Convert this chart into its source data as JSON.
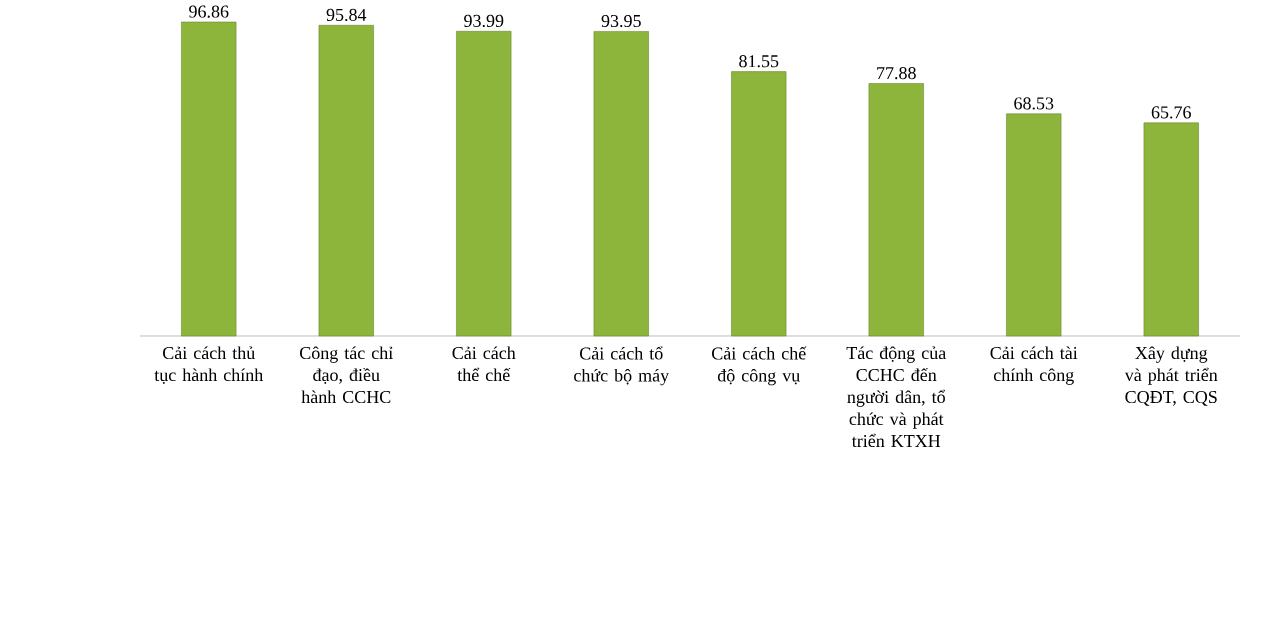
{
  "chart_data": {
    "type": "bar",
    "categories": [
      "Cải cách thủ tục hành chính",
      "Công tác chỉ đạo, điều hành CCHC",
      "Cải cách thể chế",
      "Cải cách tổ chức bộ máy",
      "Cải cách chế độ công vụ",
      "Tác động của CCHC đến người dân, tổ chức và phát triển KTXH",
      "Cải cách tài chính công",
      "Xây dựng và phát triển CQĐT, CQS"
    ],
    "values": [
      96.86,
      95.84,
      93.99,
      93.95,
      81.55,
      77.88,
      68.53,
      65.76
    ],
    "color": "#8db53c",
    "data_labels": true
  }
}
